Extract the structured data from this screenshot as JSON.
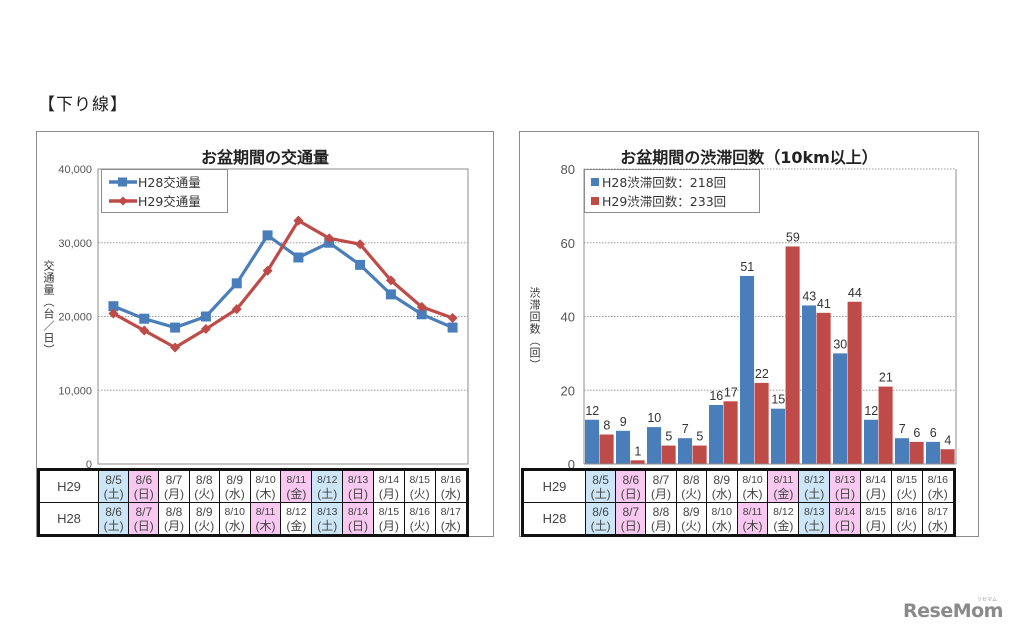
{
  "section_title": "【下り線】",
  "left_chart": {
    "title": "お盆期間の交通量",
    "ylabel": "交通量（台／日）",
    "yticks": [
      "40,000",
      "30,000",
      "20,000",
      "10,000",
      "0"
    ],
    "legend": [
      {
        "label": "H28交通量",
        "color": "#4a7ebb",
        "marker": "square"
      },
      {
        "label": "H29交通量",
        "color": "#be4b48",
        "marker": "diamond"
      }
    ]
  },
  "right_chart": {
    "title": "お盆期間の渋滞回数（10km以上）",
    "ylabel": "渋滞回数（回）",
    "yticks": [
      "80",
      "60",
      "40",
      "20",
      "0"
    ],
    "legend": [
      {
        "label": "H28渋滞回数：218回",
        "color": "#4a7ebb"
      },
      {
        "label": "H29渋滞回数：233回",
        "color": "#be4b48"
      }
    ]
  },
  "date_table": {
    "rows": [
      {
        "label": "H29",
        "cells": [
          {
            "date": "8/5",
            "day": "(土)",
            "type": "sat"
          },
          {
            "date": "8/6",
            "day": "(日)",
            "type": "hol"
          },
          {
            "date": "8/7",
            "day": "(月)",
            "type": ""
          },
          {
            "date": "8/8",
            "day": "(火)",
            "type": ""
          },
          {
            "date": "8/9",
            "day": "(水)",
            "type": ""
          },
          {
            "date": "8/10",
            "day": "(木)",
            "type": ""
          },
          {
            "date": "8/11",
            "day": "(金)",
            "type": "hol"
          },
          {
            "date": "8/12",
            "day": "(土)",
            "type": "sat"
          },
          {
            "date": "8/13",
            "day": "(日)",
            "type": "hol"
          },
          {
            "date": "8/14",
            "day": "(月)",
            "type": ""
          },
          {
            "date": "8/15",
            "day": "(火)",
            "type": ""
          },
          {
            "date": "8/16",
            "day": "(水)",
            "type": ""
          }
        ]
      },
      {
        "label": "H28",
        "cells": [
          {
            "date": "8/6",
            "day": "(土)",
            "type": "sat"
          },
          {
            "date": "8/7",
            "day": "(日)",
            "type": "hol"
          },
          {
            "date": "8/8",
            "day": "(月)",
            "type": ""
          },
          {
            "date": "8/9",
            "day": "(火)",
            "type": ""
          },
          {
            "date": "8/10",
            "day": "(水)",
            "type": ""
          },
          {
            "date": "8/11",
            "day": "(木)",
            "type": "hol"
          },
          {
            "date": "8/12",
            "day": "(金)",
            "type": ""
          },
          {
            "date": "8/13",
            "day": "(土)",
            "type": "sat"
          },
          {
            "date": "8/14",
            "day": "(日)",
            "type": "hol"
          },
          {
            "date": "8/15",
            "day": "(月)",
            "type": ""
          },
          {
            "date": "8/16",
            "day": "(火)",
            "type": ""
          },
          {
            "date": "8/17",
            "day": "(水)",
            "type": ""
          }
        ]
      }
    ]
  },
  "logo": {
    "text": "ReseMom",
    "kana": "リセマム"
  },
  "chart_data": [
    {
      "type": "line",
      "title": "お盆期間の交通量",
      "xlabel": "",
      "ylabel": "交通量（台／日）",
      "ylim": [
        0,
        40000
      ],
      "yticks": [
        0,
        10000,
        20000,
        30000,
        40000
      ],
      "grid": true,
      "legend_position": "top-left",
      "categories": [
        "H29 8/5(土) / H28 8/6(土)",
        "8/6(日) / 8/7(日)",
        "8/7(月) / 8/8(月)",
        "8/8(火) / 8/9(火)",
        "8/9(水) / 8/10(水)",
        "8/10(木) / 8/11(木)",
        "8/11(金) / 8/12(金)",
        "8/12(土) / 8/13(土)",
        "8/13(日) / 8/14(日)",
        "8/14(月) / 8/15(月)",
        "8/15(火) / 8/16(火)",
        "8/16(水) / 8/17(水)"
      ],
      "series": [
        {
          "name": "H28交通量",
          "color": "#4a7ebb",
          "values": [
            21400,
            19700,
            18500,
            20000,
            24500,
            31000,
            28000,
            30000,
            27000,
            23000,
            20300,
            18500
          ]
        },
        {
          "name": "H29交通量",
          "color": "#be4b48",
          "values": [
            20400,
            18100,
            15800,
            18300,
            21000,
            26200,
            33000,
            30600,
            29800,
            24900,
            21300,
            19800
          ]
        }
      ]
    },
    {
      "type": "bar",
      "title": "お盆期間の渋滞回数（10km以上）",
      "xlabel": "",
      "ylabel": "渋滞回数（回）",
      "ylim": [
        0,
        80
      ],
      "yticks": [
        0,
        20,
        40,
        60,
        80
      ],
      "grid": true,
      "legend_position": "top-left",
      "categories": [
        "H29 8/5(土) / H28 8/6(土)",
        "8/6(日) / 8/7(日)",
        "8/7(月) / 8/8(月)",
        "8/8(火) / 8/9(火)",
        "8/9(水) / 8/10(水)",
        "8/10(木) / 8/11(木)",
        "8/11(金) / 8/12(金)",
        "8/12(土) / 8/13(土)",
        "8/13(日) / 8/14(日)",
        "8/14(月) / 8/15(月)",
        "8/15(火) / 8/16(火)",
        "8/16(水) / 8/17(水)"
      ],
      "series": [
        {
          "name": "H28渋滞回数：218回",
          "color": "#4a7ebb",
          "values": [
            12,
            9,
            10,
            7,
            16,
            51,
            15,
            43,
            30,
            12,
            7,
            6
          ]
        },
        {
          "name": "H29渋滞回数：233回",
          "color": "#be4b48",
          "values": [
            8,
            1,
            5,
            5,
            17,
            22,
            59,
            41,
            44,
            21,
            6,
            4
          ]
        }
      ]
    }
  ]
}
